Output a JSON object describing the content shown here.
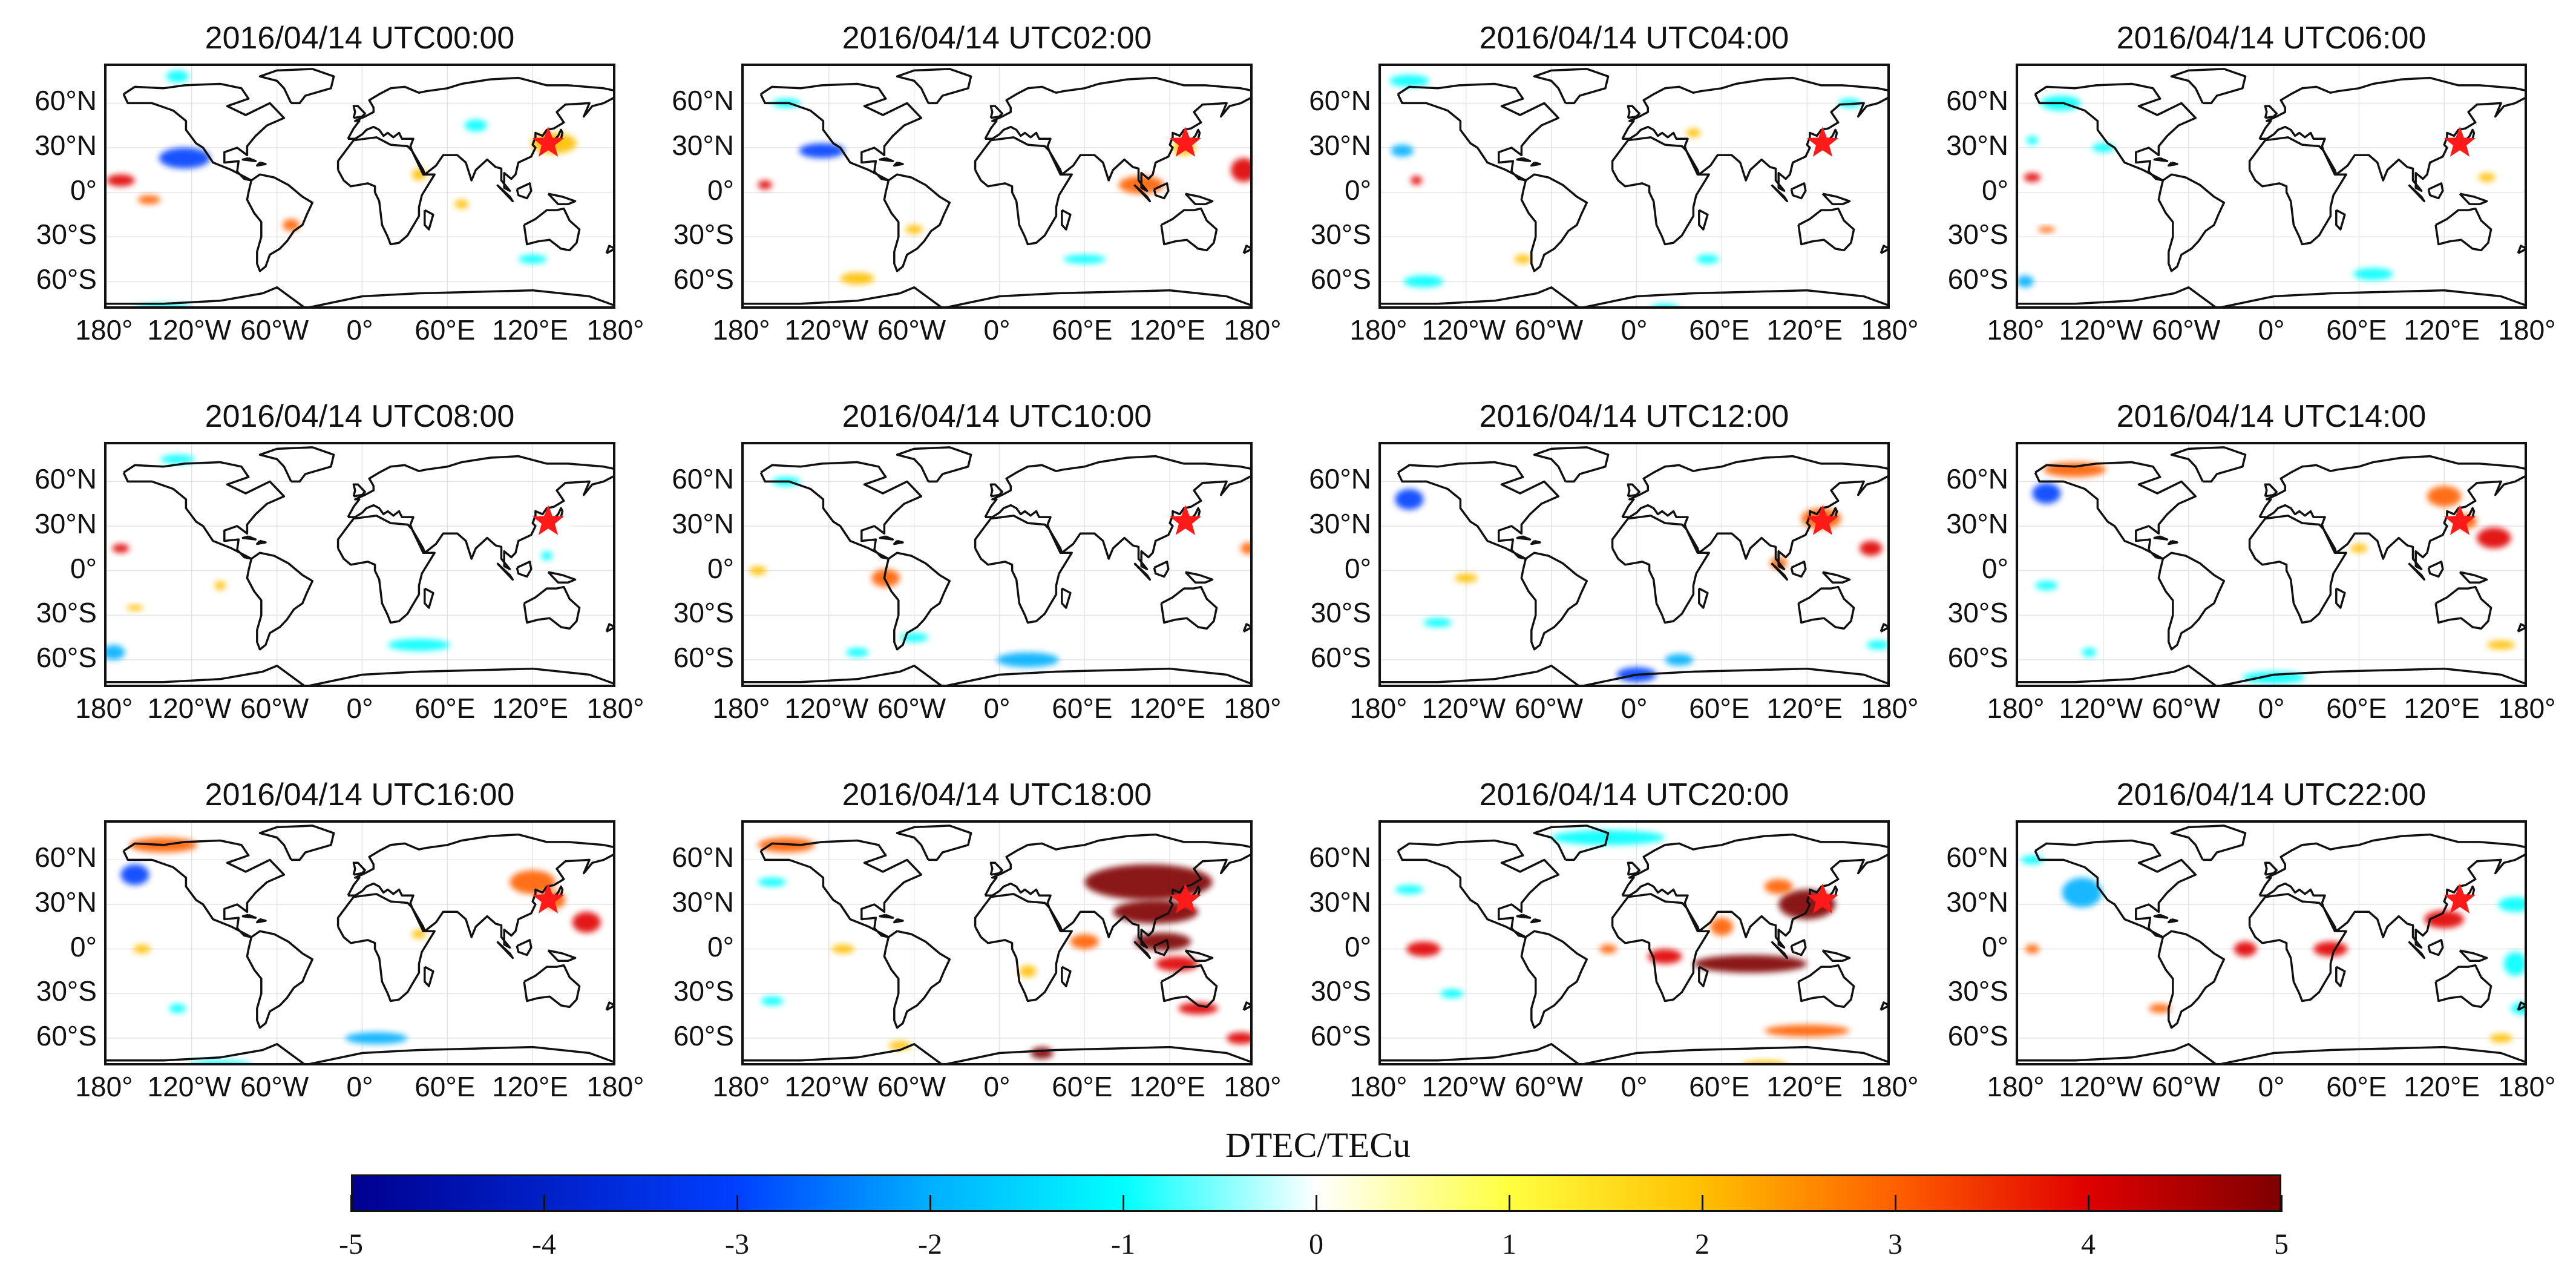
{
  "colorbar": {
    "title": "DTEC/TECu",
    "ticks": [
      "-5",
      "-4",
      "-3",
      "-2",
      "-1",
      "0",
      "1",
      "2",
      "3",
      "4",
      "5"
    ],
    "min": -5,
    "max": 5,
    "colors": [
      "#00008f",
      "#0040ff",
      "#00b0ff",
      "#00ffff",
      "#ffffff",
      "#ffff40",
      "#ffc000",
      "#ff6000",
      "#e00000",
      "#7f0000"
    ]
  },
  "axes": {
    "y_labels": [
      "60°N",
      "30°N",
      "0°",
      "30°S",
      "60°S"
    ],
    "y_values": [
      60,
      30,
      0,
      -30,
      -60
    ],
    "x_labels": [
      "180°",
      "120°W",
      "60°W",
      "0°",
      "60°E",
      "120°E",
      "180°"
    ],
    "x_values": [
      -180,
      -120,
      -60,
      0,
      60,
      120,
      180
    ],
    "lat_range": [
      -80,
      85
    ],
    "lon_range": [
      -180,
      180
    ]
  },
  "epicenter": {
    "lon": 131,
    "lat": 33,
    "marker": "red-star"
  },
  "panels": [
    {
      "title": "2016/04/14 UTC00:00",
      "blobs": [
        {
          "lon": -125,
          "lat": 23,
          "rx": 18,
          "ry": 7,
          "v": -4
        },
        {
          "lon": -170,
          "lat": 8,
          "rx": 10,
          "ry": 4,
          "v": 3
        },
        {
          "lon": -150,
          "lat": -5,
          "rx": 8,
          "ry": 3,
          "v": 2
        },
        {
          "lon": -50,
          "lat": -22,
          "rx": 6,
          "ry": 4,
          "v": 2
        },
        {
          "lon": 135,
          "lat": 33,
          "rx": 16,
          "ry": 7,
          "v": 1.5
        },
        {
          "lon": 40,
          "lat": 12,
          "rx": 5,
          "ry": 4,
          "v": 1.5
        },
        {
          "lon": 70,
          "lat": -8,
          "rx": 5,
          "ry": 3,
          "v": 1.5
        },
        {
          "lon": 120,
          "lat": -45,
          "rx": 10,
          "ry": 3,
          "v": -1.5
        },
        {
          "lon": -140,
          "lat": -78,
          "rx": 20,
          "ry": 3,
          "v": -1.5
        },
        {
          "lon": -130,
          "lat": 78,
          "rx": 8,
          "ry": 4,
          "v": -1.5
        },
        {
          "lon": 80,
          "lat": 45,
          "rx": 8,
          "ry": 4,
          "v": -1.5
        }
      ]
    },
    {
      "title": "2016/04/14 UTC02:00",
      "blobs": [
        {
          "lon": -125,
          "lat": 28,
          "rx": 16,
          "ry": 5,
          "v": -4
        },
        {
          "lon": -165,
          "lat": 5,
          "rx": 5,
          "ry": 3,
          "v": 3
        },
        {
          "lon": 172,
          "lat": 15,
          "rx": 9,
          "ry": 8,
          "v": 3.5
        },
        {
          "lon": 100,
          "lat": 5,
          "rx": 16,
          "ry": 6,
          "v": 2
        },
        {
          "lon": -60,
          "lat": -25,
          "rx": 6,
          "ry": 3,
          "v": 1.5
        },
        {
          "lon": 60,
          "lat": -45,
          "rx": 15,
          "ry": 3,
          "v": -1.5
        },
        {
          "lon": -100,
          "lat": -58,
          "rx": 12,
          "ry": 4,
          "v": 1.5
        },
        {
          "lon": -150,
          "lat": 60,
          "rx": 10,
          "ry": 3,
          "v": -1.5
        },
        {
          "lon": 130,
          "lat": 30,
          "rx": 8,
          "ry": 5,
          "v": 1.5
        }
      ]
    },
    {
      "title": "2016/04/14 UTC04:00",
      "blobs": [
        {
          "lon": -165,
          "lat": 28,
          "rx": 8,
          "ry": 4,
          "v": -3
        },
        {
          "lon": -155,
          "lat": 8,
          "rx": 4,
          "ry": 3,
          "v": 3
        },
        {
          "lon": -150,
          "lat": -60,
          "rx": 14,
          "ry": 4,
          "v": -1.5
        },
        {
          "lon": -160,
          "lat": 75,
          "rx": 14,
          "ry": 4,
          "v": -1.5
        },
        {
          "lon": 50,
          "lat": -45,
          "rx": 8,
          "ry": 3,
          "v": -1.5
        },
        {
          "lon": -80,
          "lat": -45,
          "rx": 6,
          "ry": 3,
          "v": 1.5
        },
        {
          "lon": 20,
          "lat": -78,
          "rx": 10,
          "ry": 3,
          "v": -1.5
        },
        {
          "lon": 150,
          "lat": 60,
          "rx": 8,
          "ry": 3,
          "v": -1.5
        },
        {
          "lon": 40,
          "lat": 40,
          "rx": 5,
          "ry": 3,
          "v": 1
        }
      ]
    },
    {
      "title": "2016/04/14 UTC06:00",
      "blobs": [
        {
          "lon": -150,
          "lat": 60,
          "rx": 14,
          "ry": 5,
          "v": -1.5
        },
        {
          "lon": -170,
          "lat": 10,
          "rx": 6,
          "ry": 3,
          "v": 3
        },
        {
          "lon": -175,
          "lat": -60,
          "rx": 6,
          "ry": 4,
          "v": -2.5
        },
        {
          "lon": -160,
          "lat": -25,
          "rx": 6,
          "ry": 2,
          "v": 2
        },
        {
          "lon": -120,
          "lat": 30,
          "rx": 8,
          "ry": 3,
          "v": -1.5
        },
        {
          "lon": 70,
          "lat": -55,
          "rx": 14,
          "ry": 4,
          "v": -1.5
        },
        {
          "lon": 150,
          "lat": 10,
          "rx": 6,
          "ry": 3,
          "v": 1.5
        },
        {
          "lon": -170,
          "lat": 35,
          "rx": 4,
          "ry": 3,
          "v": -1.5
        }
      ]
    },
    {
      "title": "2016/04/14 UTC08:00",
      "blobs": [
        {
          "lon": -175,
          "lat": -55,
          "rx": 8,
          "ry": 5,
          "v": -2.5
        },
        {
          "lon": -170,
          "lat": 15,
          "rx": 6,
          "ry": 3,
          "v": 3
        },
        {
          "lon": 40,
          "lat": -50,
          "rx": 22,
          "ry": 4,
          "v": -1.5
        },
        {
          "lon": -130,
          "lat": 75,
          "rx": 12,
          "ry": 3,
          "v": -1.5
        },
        {
          "lon": -100,
          "lat": -10,
          "rx": 4,
          "ry": 3,
          "v": 1.5
        },
        {
          "lon": 140,
          "lat": 30,
          "rx": 8,
          "ry": 5,
          "v": -1
        },
        {
          "lon": -160,
          "lat": -25,
          "rx": 6,
          "ry": 2,
          "v": 1.5
        },
        {
          "lon": 130,
          "lat": 10,
          "rx": 4,
          "ry": 3,
          "v": -1.5
        }
      ]
    },
    {
      "title": "2016/04/14 UTC10:00",
      "blobs": [
        {
          "lon": -80,
          "lat": -5,
          "rx": 10,
          "ry": 6,
          "v": 2.5
        },
        {
          "lon": 20,
          "lat": -60,
          "rx": 22,
          "ry": 5,
          "v": -2.5
        },
        {
          "lon": -150,
          "lat": 60,
          "rx": 10,
          "ry": 3,
          "v": -2
        },
        {
          "lon": -170,
          "lat": 0,
          "rx": 6,
          "ry": 3,
          "v": 1.5
        },
        {
          "lon": 175,
          "lat": 15,
          "rx": 5,
          "ry": 4,
          "v": 2
        },
        {
          "lon": -60,
          "lat": -45,
          "rx": 10,
          "ry": 3,
          "v": -1.5
        },
        {
          "lon": -100,
          "lat": -55,
          "rx": 8,
          "ry": 3,
          "v": -1.5
        }
      ]
    },
    {
      "title": "2016/04/14 UTC12:00",
      "blobs": [
        {
          "lon": -160,
          "lat": 48,
          "rx": 10,
          "ry": 7,
          "v": -3.5
        },
        {
          "lon": 130,
          "lat": 35,
          "rx": 14,
          "ry": 7,
          "v": 2.5
        },
        {
          "lon": 165,
          "lat": 15,
          "rx": 8,
          "ry": 5,
          "v": 3.5
        },
        {
          "lon": 0,
          "lat": -70,
          "rx": 14,
          "ry": 5,
          "v": -3.5
        },
        {
          "lon": 30,
          "lat": -60,
          "rx": 10,
          "ry": 4,
          "v": -3
        },
        {
          "lon": -120,
          "lat": -5,
          "rx": 8,
          "ry": 3,
          "v": 1.5
        },
        {
          "lon": -140,
          "lat": -35,
          "rx": 10,
          "ry": 3,
          "v": -1.5
        },
        {
          "lon": 100,
          "lat": 5,
          "rx": 6,
          "ry": 4,
          "v": 2
        },
        {
          "lon": 170,
          "lat": -50,
          "rx": 8,
          "ry": 3,
          "v": -1.5
        }
      ]
    },
    {
      "title": "2016/04/14 UTC14:00",
      "blobs": [
        {
          "lon": -160,
          "lat": 52,
          "rx": 10,
          "ry": 7,
          "v": -3.5
        },
        {
          "lon": -140,
          "lat": 68,
          "rx": 22,
          "ry": 5,
          "v": 2
        },
        {
          "lon": 120,
          "lat": 50,
          "rx": 12,
          "ry": 7,
          "v": 2.5
        },
        {
          "lon": 155,
          "lat": 22,
          "rx": 12,
          "ry": 7,
          "v": 3.8
        },
        {
          "lon": 135,
          "lat": 33,
          "rx": 8,
          "ry": 5,
          "v": 2.5
        },
        {
          "lon": -130,
          "lat": -55,
          "rx": 5,
          "ry": 3,
          "v": -2
        },
        {
          "lon": 0,
          "lat": -72,
          "rx": 22,
          "ry": 4,
          "v": -1.5
        },
        {
          "lon": 60,
          "lat": 15,
          "rx": 6,
          "ry": 3,
          "v": 1.5
        },
        {
          "lon": 160,
          "lat": -50,
          "rx": 10,
          "ry": 3,
          "v": 1.5
        },
        {
          "lon": -160,
          "lat": -10,
          "rx": 8,
          "ry": 3,
          "v": -1.5
        }
      ]
    },
    {
      "title": "2016/04/14 UTC16:00",
      "blobs": [
        {
          "lon": -160,
          "lat": 50,
          "rx": 10,
          "ry": 7,
          "v": -3.2
        },
        {
          "lon": -140,
          "lat": 70,
          "rx": 24,
          "ry": 5,
          "v": 2
        },
        {
          "lon": 120,
          "lat": 45,
          "rx": 16,
          "ry": 8,
          "v": 2.2
        },
        {
          "lon": 158,
          "lat": 18,
          "rx": 10,
          "ry": 7,
          "v": 3.8
        },
        {
          "lon": 135,
          "lat": 33,
          "rx": 8,
          "ry": 6,
          "v": 2.5
        },
        {
          "lon": 10,
          "lat": -60,
          "rx": 22,
          "ry": 4,
          "v": -2.5
        },
        {
          "lon": -130,
          "lat": -40,
          "rx": 6,
          "ry": 3,
          "v": -2
        },
        {
          "lon": -100,
          "lat": -78,
          "rx": 22,
          "ry": 3,
          "v": -1.5
        },
        {
          "lon": 40,
          "lat": 10,
          "rx": 5,
          "ry": 3,
          "v": 1.5
        },
        {
          "lon": -155,
          "lat": 0,
          "rx": 6,
          "ry": 3,
          "v": 1.5
        }
      ]
    },
    {
      "title": "2016/04/14 UTC18:00",
      "blobs": [
        {
          "lon": 105,
          "lat": 45,
          "rx": 45,
          "ry": 12,
          "v": 4.5
        },
        {
          "lon": 110,
          "lat": 25,
          "rx": 30,
          "ry": 8,
          "v": 4.5
        },
        {
          "lon": 115,
          "lat": 5,
          "rx": 20,
          "ry": 6,
          "v": 4
        },
        {
          "lon": 125,
          "lat": -10,
          "rx": 15,
          "ry": 5,
          "v": 3.5
        },
        {
          "lon": 60,
          "lat": 5,
          "rx": 10,
          "ry": 5,
          "v": 2
        },
        {
          "lon": 140,
          "lat": -40,
          "rx": 14,
          "ry": 4,
          "v": 3
        },
        {
          "lon": 170,
          "lat": -60,
          "rx": 10,
          "ry": 4,
          "v": 3.5
        },
        {
          "lon": 30,
          "lat": -70,
          "rx": 8,
          "ry": 4,
          "v": 4
        },
        {
          "lon": -150,
          "lat": 70,
          "rx": 20,
          "ry": 5,
          "v": 2
        },
        {
          "lon": -160,
          "lat": 45,
          "rx": 10,
          "ry": 3,
          "v": -1.5
        },
        {
          "lon": -160,
          "lat": -35,
          "rx": 8,
          "ry": 3,
          "v": -2
        },
        {
          "lon": -70,
          "lat": -65,
          "rx": 8,
          "ry": 3,
          "v": 1.5
        },
        {
          "lon": -110,
          "lat": 0,
          "rx": 8,
          "ry": 3,
          "v": 1.5
        },
        {
          "lon": 20,
          "lat": -15,
          "rx": 6,
          "ry": 4,
          "v": 1.5
        }
      ]
    },
    {
      "title": "2016/04/14 UTC20:00",
      "blobs": [
        {
          "lon": 80,
          "lat": -10,
          "rx": 40,
          "ry": 6,
          "v": 4
        },
        {
          "lon": 120,
          "lat": 30,
          "rx": 20,
          "ry": 10,
          "v": 4
        },
        {
          "lon": 20,
          "lat": -5,
          "rx": 12,
          "ry": 5,
          "v": 3.5
        },
        {
          "lon": -150,
          "lat": 0,
          "rx": 12,
          "ry": 5,
          "v": 3
        },
        {
          "lon": 60,
          "lat": 15,
          "rx": 8,
          "ry": 6,
          "v": 2.5
        },
        {
          "lon": 100,
          "lat": 42,
          "rx": 10,
          "ry": 5,
          "v": 2.5
        },
        {
          "lon": -20,
          "lat": 75,
          "rx": 40,
          "ry": 5,
          "v": -1.5
        },
        {
          "lon": 120,
          "lat": -55,
          "rx": 30,
          "ry": 4,
          "v": 2
        },
        {
          "lon": 90,
          "lat": -78,
          "rx": 16,
          "ry": 3,
          "v": 1.5
        },
        {
          "lon": -160,
          "lat": 40,
          "rx": 10,
          "ry": 3,
          "v": -1.5
        },
        {
          "lon": -130,
          "lat": -30,
          "rx": 8,
          "ry": 3,
          "v": -1.5
        },
        {
          "lon": -20,
          "lat": 0,
          "rx": 6,
          "ry": 3,
          "v": 2
        }
      ]
    },
    {
      "title": "2016/04/14 UTC22:00",
      "blobs": [
        {
          "lon": -135,
          "lat": 38,
          "rx": 14,
          "ry": 10,
          "v": -3
        },
        {
          "lon": 40,
          "lat": 0,
          "rx": 12,
          "ry": 5,
          "v": 3.5
        },
        {
          "lon": 120,
          "lat": 20,
          "rx": 14,
          "ry": 6,
          "v": 3.5
        },
        {
          "lon": -20,
          "lat": 0,
          "rx": 8,
          "ry": 5,
          "v": 3.5
        },
        {
          "lon": 170,
          "lat": 30,
          "rx": 12,
          "ry": 5,
          "v": -1.8
        },
        {
          "lon": 170,
          "lat": -10,
          "rx": 8,
          "ry": 8,
          "v": -2
        },
        {
          "lon": 175,
          "lat": -40,
          "rx": 8,
          "ry": 4,
          "v": -1.5
        },
        {
          "lon": -80,
          "lat": -40,
          "rx": 8,
          "ry": 3,
          "v": 2.5
        },
        {
          "lon": -170,
          "lat": 0,
          "rx": 5,
          "ry": 3,
          "v": 2.5
        },
        {
          "lon": -170,
          "lat": 60,
          "rx": 8,
          "ry": 3,
          "v": -1.5
        },
        {
          "lon": 160,
          "lat": -60,
          "rx": 8,
          "ry": 3,
          "v": 1.5
        }
      ]
    }
  ]
}
